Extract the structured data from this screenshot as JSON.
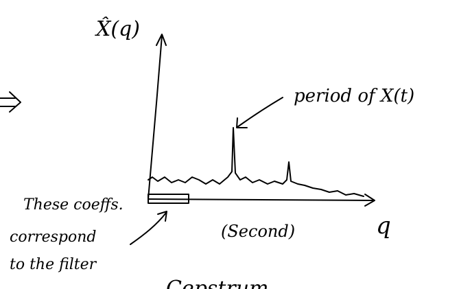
{
  "y_axis_label": "X̂(q)",
  "x_axis_label": "q",
  "x_unit": "(Second)",
  "peak_annotation": "period of X(t)",
  "filter_annotation": [
    "These coeffs.",
    "correspond",
    "to the filter"
  ],
  "caption": "Cepstrum"
}
